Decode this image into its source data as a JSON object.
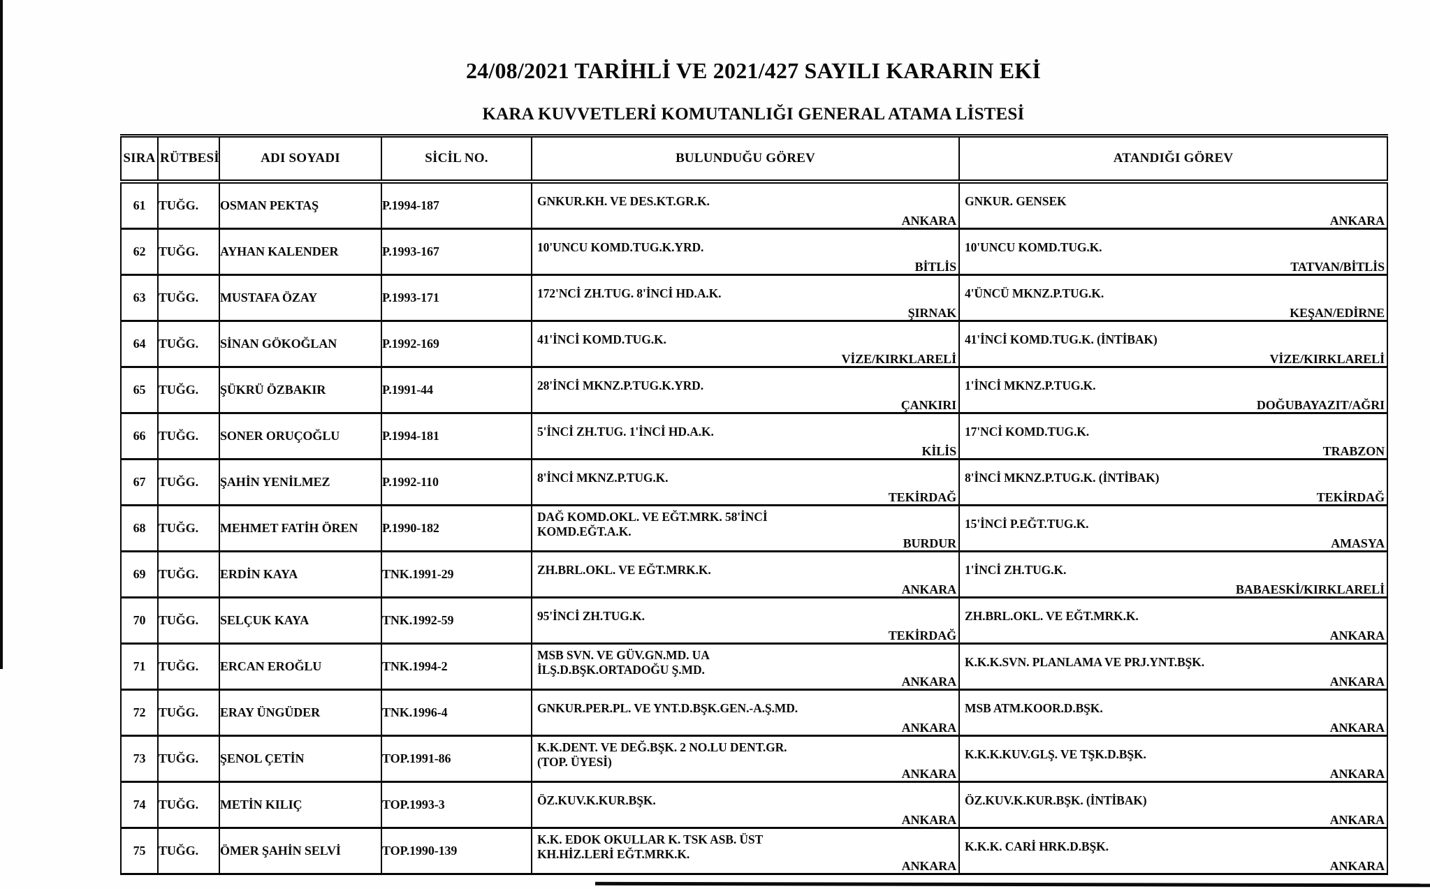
{
  "document": {
    "title": "24/08/2021 TARİHLİ VE 2021/427 SAYILI KARARIN EKİ",
    "subtitle": "KARA KUVVETLERİ KOMUTANLIĞI GENERAL ATAMA LİSTESİ"
  },
  "table": {
    "headers": [
      "SIRA",
      "RÜTBESİ",
      "ADI SOYADI",
      "SİCİL NO.",
      "BULUNDUĞU GÖREV",
      "ATANDIĞI GÖREV"
    ],
    "rows": [
      {
        "sira": "61",
        "rutbesi": "TUĞG.",
        "adi_soyadi": "OSMAN PEKTAŞ",
        "sicil_no": "P.1994-187",
        "bulundugu_gorev": "GNKUR.KH. VE DES.KT.GR.K.",
        "bulundugu_yer": "ANKARA",
        "atandigi_gorev": "GNKUR. GENSEK",
        "atandigi_yer": "ANKARA"
      },
      {
        "sira": "62",
        "rutbesi": "TUĞG.",
        "adi_soyadi": "AYHAN KALENDER",
        "sicil_no": "P.1993-167",
        "bulundugu_gorev": "10'UNCU KOMD.TUG.K.YRD.",
        "bulundugu_yer": "BİTLİS",
        "atandigi_gorev": "10'UNCU KOMD.TUG.K.",
        "atandigi_yer": "TATVAN/BİTLİS"
      },
      {
        "sira": "63",
        "rutbesi": "TUĞG.",
        "adi_soyadi": "MUSTAFA ÖZAY",
        "sicil_no": "P.1993-171",
        "bulundugu_gorev": "172'NCİ ZH.TUG. 8'İNCİ HD.A.K.",
        "bulundugu_yer": "ŞIRNAK",
        "atandigi_gorev": "4'ÜNCÜ MKNZ.P.TUG.K.",
        "atandigi_yer": "KEŞAN/EDİRNE"
      },
      {
        "sira": "64",
        "rutbesi": "TUĞG.",
        "adi_soyadi": "SİNAN GÖKOĞLAN",
        "sicil_no": "P.1992-169",
        "bulundugu_gorev": "41'İNCİ KOMD.TUG.K.",
        "bulundugu_yer": "VİZE/KIRKLARELİ",
        "atandigi_gorev": "41'İNCİ KOMD.TUG.K. (İNTİBAK)",
        "atandigi_yer": "VİZE/KIRKLARELİ"
      },
      {
        "sira": "65",
        "rutbesi": "TUĞG.",
        "adi_soyadi": "ŞÜKRÜ ÖZBAKIR",
        "sicil_no": "P.1991-44",
        "bulundugu_gorev": "28'İNCİ MKNZ.P.TUG.K.YRD.",
        "bulundugu_yer": "ÇANKIRI",
        "atandigi_gorev": "1'İNCİ MKNZ.P.TUG.K.",
        "atandigi_yer": "DOĞUBAYAZIT/AĞRI"
      },
      {
        "sira": "66",
        "rutbesi": "TUĞG.",
        "adi_soyadi": "SONER ORUÇOĞLU",
        "sicil_no": "P.1994-181",
        "bulundugu_gorev": "5'İNCİ ZH.TUG. 1'İNCİ HD.A.K.",
        "bulundugu_yer": "KİLİS",
        "atandigi_gorev": "17'NCİ KOMD.TUG.K.",
        "atandigi_yer": "TRABZON"
      },
      {
        "sira": "67",
        "rutbesi": "TUĞG.",
        "adi_soyadi": "ŞAHİN YENİLMEZ",
        "sicil_no": "P.1992-110",
        "bulundugu_gorev": "8'İNCİ MKNZ.P.TUG.K.",
        "bulundugu_yer": "TEKİRDAĞ",
        "atandigi_gorev": "8'İNCİ MKNZ.P.TUG.K. (İNTİBAK)",
        "atandigi_yer": "TEKİRDAĞ"
      },
      {
        "sira": "68",
        "rutbesi": "TUĞG.",
        "adi_soyadi": "MEHMET FATİH ÖREN",
        "sicil_no": "P.1990-182",
        "bulundugu_gorev": "DAĞ KOMD.OKL. VE EĞT.MRK. 58'İNCİ\nKOMD.EĞT.A.K.",
        "bulundugu_yer": "BURDUR",
        "atandigi_gorev": "15'İNCİ P.EĞT.TUG.K.",
        "atandigi_yer": "AMASYA"
      },
      {
        "sira": "69",
        "rutbesi": "TUĞG.",
        "adi_soyadi": "ERDİN KAYA",
        "sicil_no": "TNK.1991-29",
        "bulundugu_gorev": "ZH.BRL.OKL. VE EĞT.MRK.K.",
        "bulundugu_yer": "ANKARA",
        "atandigi_gorev": "1'İNCİ ZH.TUG.K.",
        "atandigi_yer": "BABAESKİ/KIRKLARELİ"
      },
      {
        "sira": "70",
        "rutbesi": "TUĞG.",
        "adi_soyadi": "SELÇUK KAYA",
        "sicil_no": "TNK.1992-59",
        "bulundugu_gorev": "95'İNCİ ZH.TUG.K.",
        "bulundugu_yer": "TEKİRDAĞ",
        "atandigi_gorev": "ZH.BRL.OKL. VE EĞT.MRK.K.",
        "atandigi_yer": "ANKARA"
      },
      {
        "sira": "71",
        "rutbesi": "TUĞG.",
        "adi_soyadi": "ERCAN EROĞLU",
        "sicil_no": "TNK.1994-2",
        "bulundugu_gorev": "MSB SVN. VE GÜV.GN.MD. UA\nİLŞ.D.BŞK.ORTADOĞU Ş.MD.",
        "bulundugu_yer": "ANKARA",
        "atandigi_gorev": "K.K.K.SVN. PLANLAMA VE PRJ.YNT.BŞK.",
        "atandigi_yer": "ANKARA"
      },
      {
        "sira": "72",
        "rutbesi": "TUĞG.",
        "adi_soyadi": "ERAY ÜNGÜDER",
        "sicil_no": "TNK.1996-4",
        "bulundugu_gorev": "GNKUR.PER.PL. VE YNT.D.BŞK.GEN.-A.Ş.MD.",
        "bulundugu_yer": "ANKARA",
        "atandigi_gorev": "MSB ATM.KOOR.D.BŞK.",
        "atandigi_yer": "ANKARA"
      },
      {
        "sira": "73",
        "rutbesi": "TUĞG.",
        "adi_soyadi": "ŞENOL ÇETİN",
        "sicil_no": "TOP.1991-86",
        "bulundugu_gorev": "K.K.DENT. VE DEĞ.BŞK. 2 NO.LU DENT.GR.\n(TOP. ÜYESİ)",
        "bulundugu_yer": "ANKARA",
        "atandigi_gorev": "K.K.K.KUV.GLŞ. VE TŞK.D.BŞK.",
        "atandigi_yer": "ANKARA"
      },
      {
        "sira": "74",
        "rutbesi": "TUĞG.",
        "adi_soyadi": "METİN KILIÇ",
        "sicil_no": "TOP.1993-3",
        "bulundugu_gorev": "ÖZ.KUV.K.KUR.BŞK.",
        "bulundugu_yer": "ANKARA",
        "atandigi_gorev": "ÖZ.KUV.K.KUR.BŞK. (İNTİBAK)",
        "atandigi_yer": "ANKARA"
      },
      {
        "sira": "75",
        "rutbesi": "TUĞG.",
        "adi_soyadi": "ÖMER ŞAHİN SELVİ",
        "sicil_no": "TOP.1990-139",
        "bulundugu_gorev": "K.K. EDOK OKULLAR K. TSK ASB. ÜST\nKH.HİZ.LERİ EĞT.MRK.K.",
        "bulundugu_yer": "ANKARA",
        "atandigi_gorev": "K.K.K. CARİ HRK.D.BŞK.",
        "atandigi_yer": "ANKARA"
      }
    ]
  }
}
